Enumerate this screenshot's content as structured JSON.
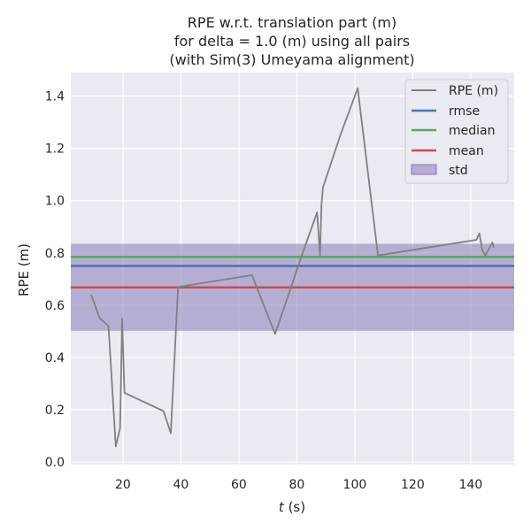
{
  "chart_data": {
    "type": "line",
    "title_lines": [
      "RPE w.r.t. translation part (m)",
      "for delta = 1.0 (m) using all pairs",
      "(with Sim(3) Umeyama alignment)"
    ],
    "xlabel_var": "t",
    "xlabel_unit": " (s)",
    "ylabel": "RPE (m)",
    "xlim": [
      2,
      155
    ],
    "ylim": [
      -0.01,
      1.49
    ],
    "xticks": [
      20,
      40,
      60,
      80,
      100,
      120,
      140
    ],
    "yticks": [
      0.0,
      0.2,
      0.4,
      0.6,
      0.8,
      1.0,
      1.2,
      1.4
    ],
    "grid": true,
    "legend_position": "top-right",
    "series": [
      {
        "name": "RPE (m)",
        "color": "#808080",
        "points": [
          [
            9,
            0.64
          ],
          [
            12,
            0.55
          ],
          [
            15,
            0.52
          ],
          [
            17.5,
            0.06
          ],
          [
            19,
            0.13
          ],
          [
            19.7,
            0.55
          ],
          [
            20.5,
            0.265
          ],
          [
            34,
            0.195
          ],
          [
            36.5,
            0.11
          ],
          [
            39,
            0.67
          ],
          [
            64.5,
            0.715
          ],
          [
            72.5,
            0.49
          ],
          [
            82,
            0.8
          ],
          [
            87,
            0.955
          ],
          [
            88,
            0.79
          ],
          [
            88.5,
            0.98
          ],
          [
            89,
            1.05
          ],
          [
            95,
            1.25
          ],
          [
            101,
            1.43
          ],
          [
            108,
            0.79
          ],
          [
            142,
            0.85
          ],
          [
            143,
            0.875
          ],
          [
            144,
            0.81
          ],
          [
            145,
            0.79
          ],
          [
            147.5,
            0.84
          ],
          [
            148,
            0.82
          ]
        ]
      }
    ],
    "stats": {
      "rmse": {
        "name": "rmse",
        "value": 0.75,
        "color": "#4c72b0"
      },
      "median": {
        "name": "median",
        "value": 0.785,
        "color": "#55a868"
      },
      "mean": {
        "name": "mean",
        "value": 0.668,
        "color": "#c44e52"
      },
      "std": {
        "name": "std",
        "low": 0.502,
        "high": 0.835,
        "color": "#8172b2"
      }
    },
    "legend": [
      "RPE (m)",
      "rmse",
      "median",
      "mean",
      "std"
    ]
  }
}
